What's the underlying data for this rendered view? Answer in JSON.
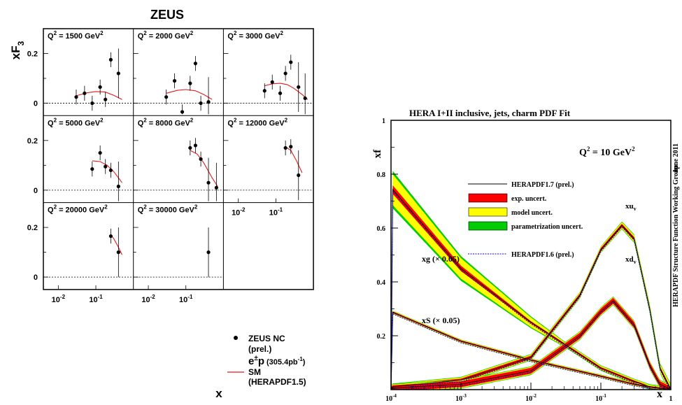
{
  "left": {
    "title": "ZEUS",
    "ylabel_main": "xF",
    "ylabel_sub": "3",
    "xlabel": "x",
    "y_ticks": [
      "0.2",
      "0"
    ],
    "x_ticks": [
      "10",
      "10"
    ],
    "x_tick_exps": [
      "-2",
      "-1"
    ],
    "panel_labels": [
      {
        "pre": "Q",
        "sup": "2",
        "post": " = 1500 GeV",
        "sup2": "2"
      },
      {
        "pre": "Q",
        "sup": "2",
        "post": " = 2000 GeV",
        "sup2": "2"
      },
      {
        "pre": "Q",
        "sup": "2",
        "post": " = 3000 GeV",
        "sup2": "2"
      },
      {
        "pre": "Q",
        "sup": "2",
        "post": " = 5000 GeV",
        "sup2": "2"
      },
      {
        "pre": "Q",
        "sup": "2",
        "post": " = 8000 GeV",
        "sup2": "2"
      },
      {
        "pre": "Q",
        "sup": "2",
        "post": " = 12000 GeV",
        "sup2": "2"
      },
      {
        "pre": "Q",
        "sup": "2",
        "post": " = 20000 GeV",
        "sup2": "2"
      },
      {
        "pre": "Q",
        "sup": "2",
        "post": " = 30000 GeV",
        "sup2": "2"
      }
    ],
    "legend": {
      "data_line1": "ZEUS NC",
      "data_line2": "(prel.)",
      "lumi_big": "e",
      "lumi_pm": "±",
      "lumi_p": "p",
      "lumi_val": "(305.4pb",
      "lumi_exp": "-1",
      "lumi_close": ")",
      "sm_line1": "SM",
      "sm_line2": "(HERAPDF1.5)"
    },
    "colors": {
      "data": "#000000",
      "sm": "#e41a1c"
    }
  },
  "right": {
    "title": "HERA I+II inclusive, jets, charm PDF Fit",
    "ylabel": "xf",
    "xlabel": "x",
    "q2_pre": "Q",
    "q2_sup": "2",
    "q2_post": " = 10 GeV",
    "q2_sup2": "2",
    "side_date": "June 2011",
    "side_group": "HERAPDF Structure Function Working Group",
    "y_ticks": [
      "1",
      "0.8",
      "0.6",
      "0.4",
      "0.2"
    ],
    "x_ticks": [
      {
        "base": "10",
        "exp": "-4"
      },
      {
        "base": "10",
        "exp": "-3"
      },
      {
        "base": "10",
        "exp": "-2"
      },
      {
        "base": "10",
        "exp": "-1"
      },
      {
        "base": "1",
        "exp": ""
      }
    ],
    "legend": [
      "HERAPDF1.7 (prel.)",
      "exp. uncert.",
      "model uncert.",
      "parametrization uncert.",
      "HERAPDF1.6 (prel.)"
    ],
    "curve_labels": {
      "xuv": "xu",
      "xuv_sub": "v",
      "xdv": "xd",
      "xdv_sub": "v",
      "xg": "xg (× 0.05)",
      "xs": "xS (× 0.05)"
    },
    "colors": {
      "exp": "#ff0000",
      "model": "#ffff00",
      "param": "#00cc00",
      "central": "#000000",
      "old": "#0000cc"
    }
  },
  "chart_data": [
    {
      "type": "scatter",
      "title": "ZEUS",
      "xlabel": "x",
      "ylabel": "xF3",
      "x_scale": "log",
      "xlim": [
        0.004,
        1
      ],
      "ylim": [
        -0.05,
        0.3
      ],
      "panels": [
        {
          "q2": "1500 GeV²",
          "x": [
            0.03,
            0.05,
            0.08,
            0.13,
            0.18,
            0.25,
            0.4
          ],
          "y": [
            0.025,
            0.04,
            0.0,
            0.065,
            0.015,
            0.175,
            0.12
          ],
          "sm_x": [
            0.03,
            0.06,
            0.1,
            0.18,
            0.3,
            0.5
          ],
          "sm_y": [
            0.03,
            0.042,
            0.047,
            0.045,
            0.032,
            0.015
          ]
        },
        {
          "q2": "2000 GeV²",
          "x": [
            0.03,
            0.05,
            0.08,
            0.13,
            0.18,
            0.25,
            0.4
          ],
          "y": [
            0.025,
            0.09,
            -0.035,
            0.08,
            0.16,
            0.0,
            0.005
          ],
          "sm_x": [
            0.03,
            0.06,
            0.1,
            0.18,
            0.3,
            0.5
          ],
          "sm_y": [
            0.04,
            0.052,
            0.055,
            0.05,
            0.035,
            0.015
          ]
        },
        {
          "q2": "3000 GeV²",
          "x": [
            0.05,
            0.08,
            0.13,
            0.18,
            0.25,
            0.4,
            0.6
          ],
          "y": [
            0.05,
            0.085,
            0.04,
            0.12,
            0.165,
            0.065,
            0.02
          ],
          "sm_x": [
            0.05,
            0.08,
            0.13,
            0.2,
            0.3,
            0.5,
            0.7
          ],
          "sm_y": [
            0.07,
            0.078,
            0.08,
            0.075,
            0.06,
            0.035,
            0.015
          ]
        },
        {
          "q2": "5000 GeV²",
          "x": [
            0.08,
            0.13,
            0.18,
            0.25,
            0.4
          ],
          "y": [
            0.085,
            0.15,
            0.095,
            0.08,
            0.015
          ],
          "sm_x": [
            0.08,
            0.13,
            0.2,
            0.3,
            0.5
          ],
          "sm_y": [
            0.118,
            0.115,
            0.1,
            0.075,
            0.03
          ]
        },
        {
          "q2": "8000 GeV²",
          "x": [
            0.13,
            0.18,
            0.25,
            0.4,
            0.65
          ],
          "y": [
            0.17,
            0.18,
            0.125,
            0.03,
            0.01
          ],
          "sm_x": [
            0.13,
            0.2,
            0.3,
            0.5,
            0.7
          ],
          "sm_y": [
            0.16,
            0.145,
            0.11,
            0.05,
            0.015
          ]
        },
        {
          "q2": "12000 GeV²",
          "x": [
            0.18,
            0.25,
            0.4
          ],
          "y": [
            0.17,
            0.175,
            0.06
          ],
          "sm_x": [
            0.18,
            0.25,
            0.35,
            0.5
          ],
          "sm_y": [
            0.175,
            0.16,
            0.12,
            0.07
          ]
        },
        {
          "q2": "20000 GeV²",
          "x": [
            0.25,
            0.4
          ],
          "y": [
            0.165,
            0.1
          ],
          "sm_x": [
            0.25,
            0.3,
            0.4,
            0.5
          ],
          "sm_y": [
            0.17,
            0.155,
            0.12,
            0.09
          ]
        },
        {
          "q2": "30000 GeV²",
          "x": [
            0.4
          ],
          "y": [
            0.1
          ],
          "sm_x": [],
          "sm_y": []
        }
      ]
    },
    {
      "type": "area",
      "title": "HERA I+II inclusive, jets, charm PDF Fit",
      "xlabel": "x",
      "ylabel": "xf",
      "x_scale": "log",
      "xlim": [
        0.0001,
        1
      ],
      "ylim": [
        0,
        1
      ],
      "annotation": "Q² = 10 GeV²",
      "series": [
        {
          "name": "xu_v",
          "x": [
            0.0001,
            0.001,
            0.01,
            0.05,
            0.1,
            0.2,
            0.3,
            0.5,
            0.7,
            1
          ],
          "y": [
            0.01,
            0.035,
            0.12,
            0.35,
            0.52,
            0.61,
            0.56,
            0.3,
            0.08,
            0.0
          ]
        },
        {
          "name": "xd_v",
          "x": [
            0.0001,
            0.001,
            0.01,
            0.05,
            0.1,
            0.15,
            0.3,
            0.5,
            0.7,
            1
          ],
          "y": [
            0.005,
            0.02,
            0.07,
            0.2,
            0.29,
            0.33,
            0.24,
            0.09,
            0.02,
            0.0
          ]
        },
        {
          "name": "xg (× 0.05)",
          "x": [
            0.0001,
            0.001,
            0.01,
            0.1,
            0.3,
            0.5,
            1
          ],
          "y": [
            0.75,
            0.45,
            0.25,
            0.08,
            0.03,
            0.01,
            0.0
          ]
        },
        {
          "name": "xS (× 0.05)",
          "x": [
            0.0001,
            0.001,
            0.01,
            0.1,
            0.3,
            0.5,
            1
          ],
          "y": [
            0.29,
            0.18,
            0.11,
            0.05,
            0.02,
            0.01,
            0.0
          ]
        }
      ],
      "legend": [
        "HERAPDF1.7 (prel.)",
        "exp. uncert.",
        "model uncert.",
        "parametrization uncert.",
        "HERAPDF1.6 (prel.)"
      ]
    }
  ]
}
